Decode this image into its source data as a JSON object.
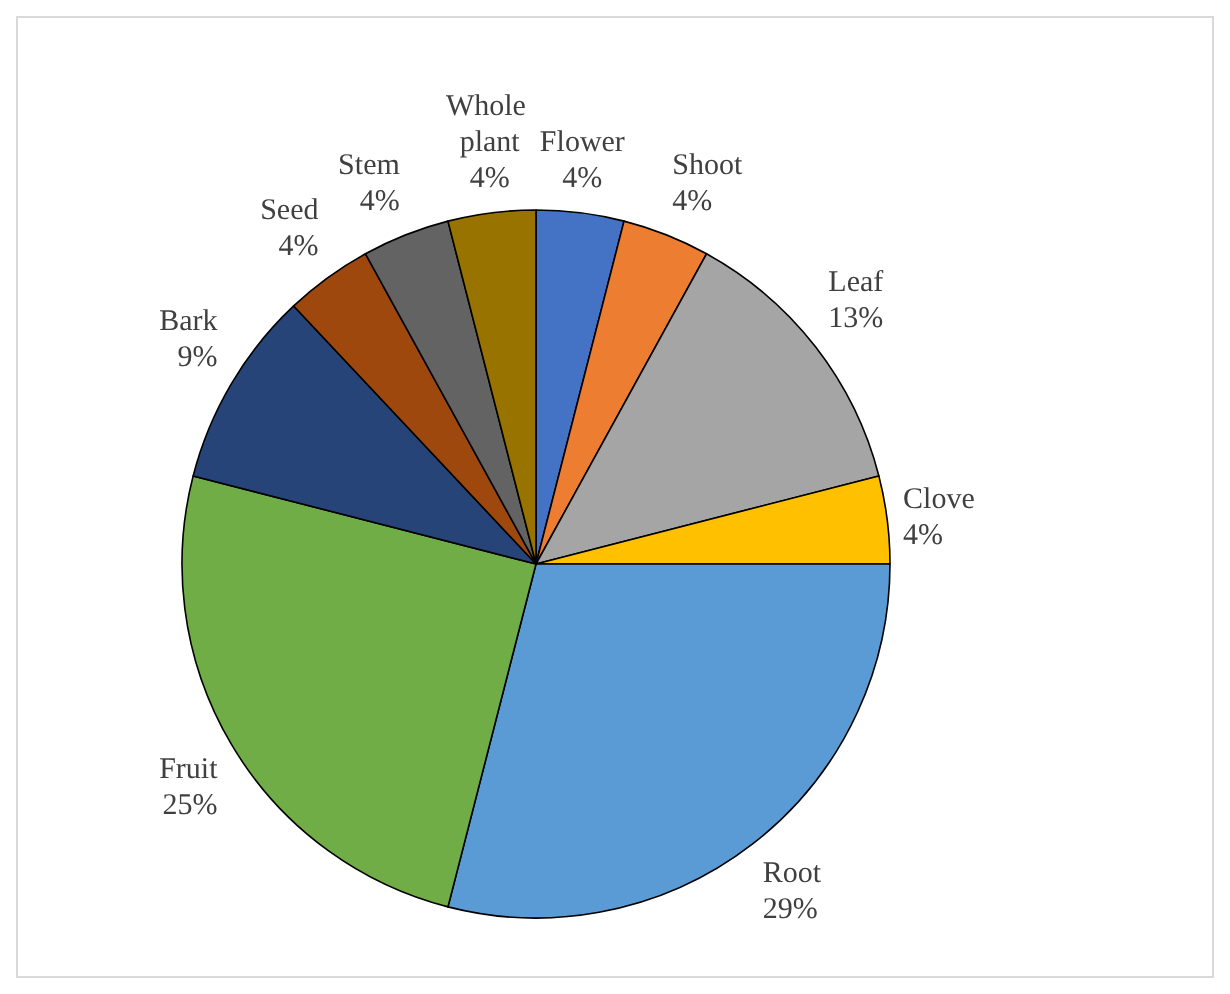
{
  "chart_data": {
    "type": "pie",
    "categories": [
      "Flower",
      "Shoot",
      "Leaf",
      "Clove",
      "Root",
      "Fruit",
      "Bark",
      "Seed",
      "Stem",
      "Whole plant"
    ],
    "values": [
      4,
      4,
      13,
      4,
      29,
      25,
      9,
      4,
      4,
      4
    ],
    "colors": [
      "#4472c4",
      "#ed7d31",
      "#a5a5a5",
      "#ffc000",
      "#5b9bd5",
      "#70ad47",
      "#264478",
      "#9e480e",
      "#636363",
      "#997300"
    ],
    "value_labels": [
      "4%",
      "4%",
      "13%",
      "4%",
      "29%",
      "25%",
      "9%",
      "4%",
      "4%",
      "4%"
    ],
    "legend": false
  }
}
